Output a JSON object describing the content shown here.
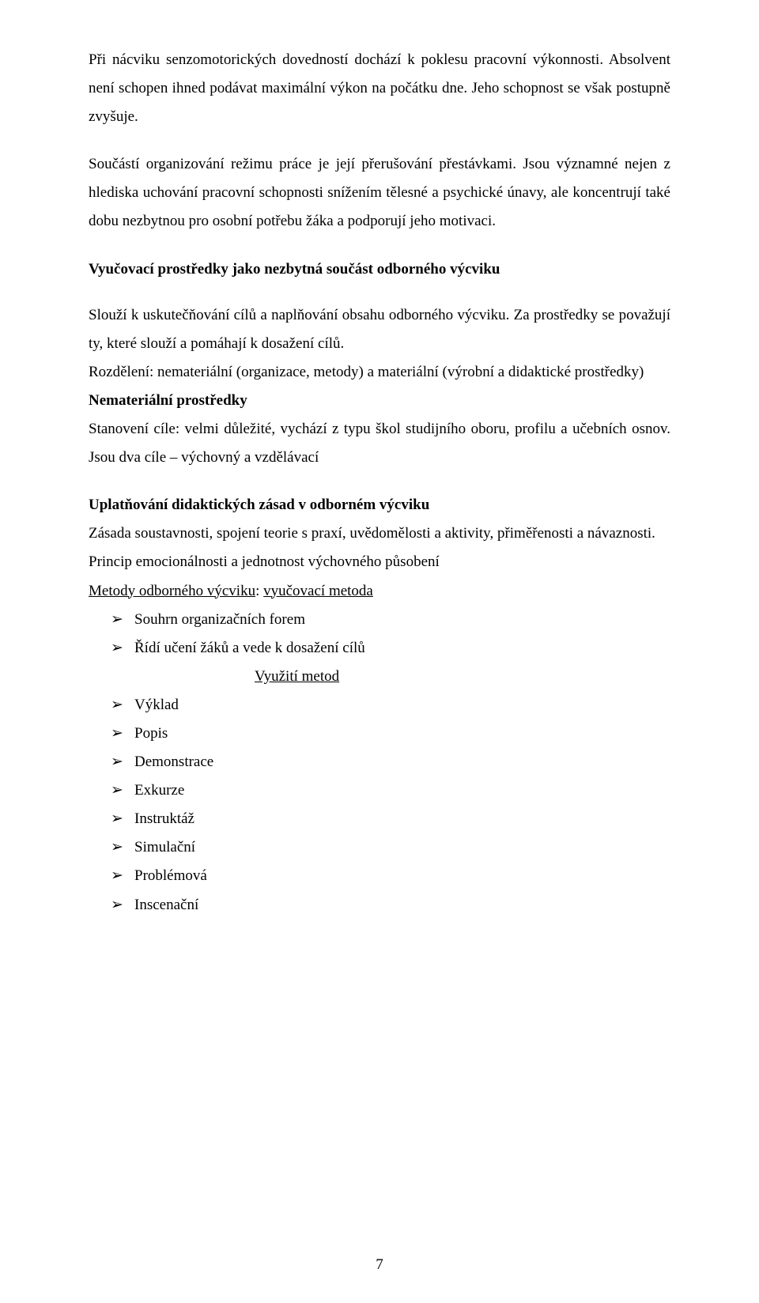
{
  "p1": "Při nácviku senzomotorických dovedností dochází k poklesu pracovní výkonnosti. Absolvent není schopen ihned podávat maximální výkon na počátku dne. Jeho schopnost se však postupně zvyšuje.",
  "p2": "Součástí organizování režimu práce je její přerušování přestávkami. Jsou významné nejen z hlediska uchování pracovní schopnosti snížením tělesné a psychické únavy, ale koncentrují také dobu nezbytnou pro osobní potřebu žáka a podporují jeho motivaci.",
  "h1": "Vyučovací prostředky jako nezbytná součást odborného výcviku",
  "p3": "Slouží k uskutečňování cílů a naplňování obsahu odborného výcviku. Za prostředky se považují ty, které slouží a pomáhají k dosažení cílů.",
  "p4": "Rozdělení: nemateriální (organizace, metody) a materiální (výrobní a didaktické prostředky)",
  "p5": "Nemateriální prostředky",
  "p6": "Stanovení cíle: velmi důležité, vychází z typu škol studijního oboru, profilu a učebních osnov. Jsou dva cíle – výchovný a vzdělávací",
  "h2": "Uplatňování didaktických zásad v odborném výcviku",
  "p7": "Zásada soustavnosti, spojení teorie s praxí, uvědomělosti a aktivity, přiměřenosti a návaznosti.",
  "p8": "Princip emocionálnosti a jednotnost výchovného působení",
  "methods_label": "Metody odborného výcviku",
  "methods_sep": ": ",
  "methods_value": "vyučovací metoda",
  "list_top": {
    "0": "Souhrn organizačních forem",
    "1": "Řídí učení žáků a vede k dosažení cílů"
  },
  "use_methods": "Využití metod",
  "list_bottom": {
    "0": "Výklad",
    "1": "Popis",
    "2": "Demonstrace",
    "3": "Exkurze",
    "4": "Instruktáž",
    "5": "Simulační",
    "6": "Problémová",
    "7": "Inscenační"
  },
  "page_number": "7"
}
